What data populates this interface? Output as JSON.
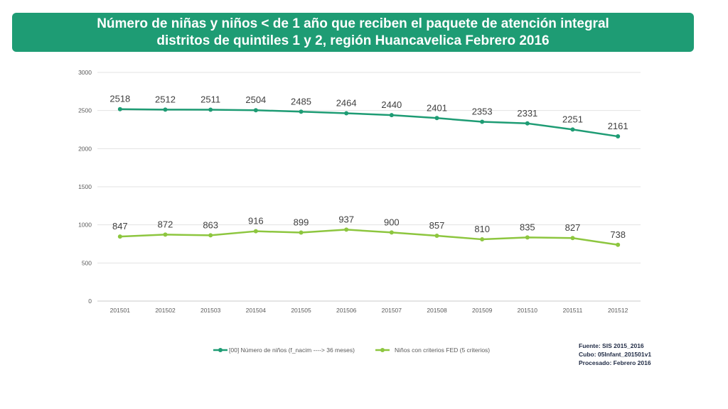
{
  "title": {
    "line1": "Número de niñas y niños < de 1 año que reciben el paquete de atención integral",
    "line2": "distritos de quintiles 1 y 2, región Huancavelica Febrero 2016"
  },
  "source": {
    "line1": "Fuente: SIS 2015_2016",
    "line2": "Cubo: 05Infant_201501v1",
    "line3": "Procesado: Febrero 2016"
  },
  "chart_data": {
    "type": "line",
    "categories": [
      "201501",
      "201502",
      "201503",
      "201504",
      "201505",
      "201506",
      "201507",
      "201508",
      "201509",
      "201510",
      "201511",
      "201512"
    ],
    "series": [
      {
        "name": "[00] Número de niños (f_nacim ----> 36 meses)",
        "color": "#1e9c74",
        "values": [
          2518,
          2512,
          2511,
          2504,
          2485,
          2464,
          2440,
          2401,
          2353,
          2331,
          2251,
          2161
        ]
      },
      {
        "name": "Niños con criterios FED (5 criterios)",
        "color": "#8dc63f",
        "values": [
          847,
          872,
          863,
          916,
          899,
          937,
          900,
          857,
          810,
          835,
          827,
          738
        ]
      }
    ],
    "yticks": [
      0,
      500,
      1000,
      1500,
      2000,
      2500,
      3000
    ],
    "ylim": [
      0,
      3000
    ],
    "grid": true,
    "legend": "bottom"
  }
}
